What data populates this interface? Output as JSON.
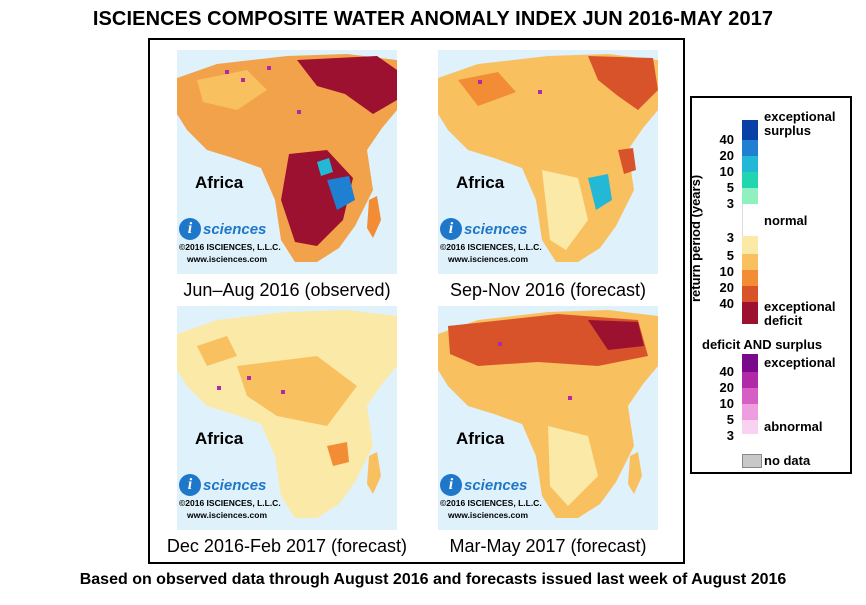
{
  "title": "ISCIENCES COMPOSITE WATER ANOMALY INDEX JUN 2016-MAY 2017",
  "footer": "Based on observed data through August 2016 and forecasts issued last week of August 2016",
  "panels": [
    {
      "caption": "Jun–Aug 2016 (observed)",
      "region": "Africa",
      "logo": "sciences",
      "copyright": "©2016 ISCIENCES, L.L.C.",
      "url": "www.isciences.com"
    },
    {
      "caption": "Sep-Nov 2016 (forecast)",
      "region": "Africa",
      "logo": "sciences",
      "copyright": "©2016 ISCIENCES, L.L.C.",
      "url": "www.isciences.com"
    },
    {
      "caption": "Dec 2016-Feb 2017 (forecast)",
      "region": "Africa",
      "logo": "sciences",
      "copyright": "©2016 ISCIENCES, L.L.C.",
      "url": "www.isciences.com"
    },
    {
      "caption": "Mar-May 2017 (forecast)",
      "region": "Africa",
      "logo": "sciences",
      "copyright": "©2016 ISCIENCES, L.L.C.",
      "url": "www.isciences.com"
    }
  ],
  "legend": {
    "axis_label": "return period (years)",
    "surplus_label": "exceptional surplus",
    "normal_label": "normal",
    "deficit_label": "exceptional deficit",
    "both_title": "deficit AND surplus",
    "both_top": "exceptional",
    "both_bottom": "abnormal",
    "nodata_label": "no data",
    "surplus_ticks": [
      "40",
      "20",
      "10",
      "5",
      "3"
    ],
    "deficit_ticks": [
      "3",
      "5",
      "10",
      "20",
      "40"
    ],
    "both_ticks": [
      "40",
      "20",
      "10",
      "5",
      "3"
    ],
    "colors": {
      "surplus": [
        "#0b3fa8",
        "#1f7fd0",
        "#22b8d6",
        "#20d6b0",
        "#8ff0c0",
        "#d9fbe2"
      ],
      "deficit": [
        "#fbe9a8",
        "#f9c060",
        "#f28c35",
        "#d9532a",
        "#9c1030"
      ],
      "both": [
        "#7a0a8c",
        "#b02aa8",
        "#d65ec4",
        "#ee9ede",
        "#f9d2f0"
      ],
      "nodata": "#c8c8c8",
      "ocean": "#dff1fb"
    }
  }
}
